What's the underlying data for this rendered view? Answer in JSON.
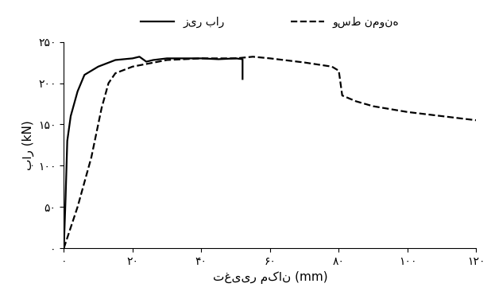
{
  "chart_data": {
    "type": "line",
    "xlabel": "تغییر مکان (mm)",
    "ylabel": "بار (kN)",
    "xlim": [
      0,
      120
    ],
    "ylim": [
      0,
      250
    ],
    "xticks": [
      {
        "value": 0,
        "label": "۰"
      },
      {
        "value": 20,
        "label": "۲۰"
      },
      {
        "value": 40,
        "label": "۴۰"
      },
      {
        "value": 60,
        "label": "۶۰"
      },
      {
        "value": 80,
        "label": "۸۰"
      },
      {
        "value": 100,
        "label": "۱۰۰"
      },
      {
        "value": 120,
        "label": "۱۲۰"
      }
    ],
    "yticks": [
      {
        "value": 0,
        "label": "۰"
      },
      {
        "value": 50,
        "label": "۵۰"
      },
      {
        "value": 100,
        "label": "۱۰۰"
      },
      {
        "value": 150,
        "label": "۱۵۰"
      },
      {
        "value": 200,
        "label": "۲۰۰"
      },
      {
        "value": 250,
        "label": "۲۵۰"
      }
    ],
    "grid": false,
    "legend": "upper center",
    "series": [
      {
        "name": "زیر بار",
        "color": "#000000",
        "line_style": "solid",
        "x": [
          0,
          0.5,
          1,
          2,
          4,
          6,
          10,
          15,
          20,
          22,
          24,
          26,
          30,
          40,
          45,
          50,
          52,
          52
        ],
        "values": [
          0,
          60,
          130,
          160,
          190,
          210,
          220,
          228,
          230,
          232,
          226,
          228,
          230,
          230,
          229,
          230,
          229,
          205
        ]
      },
      {
        "name": "وسط نمونه",
        "color": "#000000",
        "line_style": "dashed",
        "x": [
          0,
          4,
          8,
          11,
          13,
          15,
          20,
          30,
          40,
          50,
          55,
          60,
          70,
          78,
          80,
          81,
          85,
          90,
          100,
          110,
          120
        ],
        "values": [
          0,
          50,
          110,
          170,
          200,
          212,
          220,
          228,
          230,
          230,
          232,
          230,
          225,
          220,
          215,
          185,
          178,
          172,
          165,
          160,
          155
        ]
      }
    ]
  }
}
